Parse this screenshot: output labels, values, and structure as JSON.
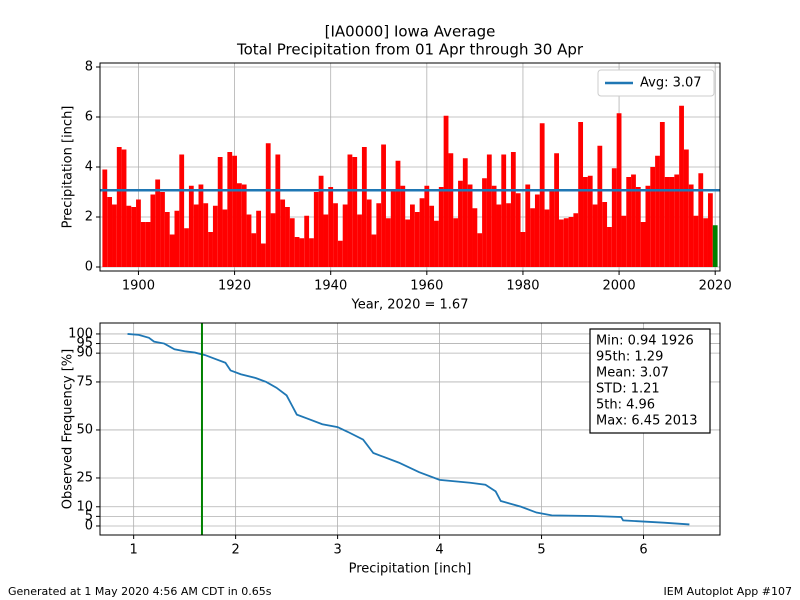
{
  "chart_data": [
    {
      "type": "bar",
      "title": "[IA0000] Iowa Average",
      "subtitle": "Total Precipitation from 01 Apr through 30 Apr",
      "xlabel": "Year, 2020 = 1.67",
      "ylabel": "Precipitation [inch]",
      "x": [
        1893,
        1894,
        1895,
        1896,
        1897,
        1898,
        1899,
        1900,
        1901,
        1902,
        1903,
        1904,
        1905,
        1906,
        1907,
        1908,
        1909,
        1910,
        1911,
        1912,
        1913,
        1914,
        1915,
        1916,
        1917,
        1918,
        1919,
        1920,
        1921,
        1922,
        1923,
        1924,
        1925,
        1926,
        1927,
        1928,
        1929,
        1930,
        1931,
        1932,
        1933,
        1934,
        1935,
        1936,
        1937,
        1938,
        1939,
        1940,
        1941,
        1942,
        1943,
        1944,
        1945,
        1946,
        1947,
        1948,
        1949,
        1950,
        1951,
        1952,
        1953,
        1954,
        1955,
        1956,
        1957,
        1958,
        1959,
        1960,
        1961,
        1962,
        1963,
        1964,
        1965,
        1966,
        1967,
        1968,
        1969,
        1970,
        1971,
        1972,
        1973,
        1974,
        1975,
        1976,
        1977,
        1978,
        1979,
        1980,
        1981,
        1982,
        1983,
        1984,
        1985,
        1986,
        1987,
        1988,
        1989,
        1990,
        1991,
        1992,
        1993,
        1994,
        1995,
        1996,
        1997,
        1998,
        1999,
        2000,
        2001,
        2002,
        2003,
        2004,
        2005,
        2006,
        2007,
        2008,
        2009,
        2010,
        2011,
        2012,
        2013,
        2014,
        2015,
        2016,
        2017,
        2018,
        2019,
        2020
      ],
      "values": [
        3.9,
        2.8,
        2.5,
        4.8,
        4.7,
        2.45,
        2.4,
        2.7,
        1.8,
        1.8,
        2.9,
        3.5,
        3.0,
        2.2,
        1.3,
        2.25,
        4.5,
        1.55,
        3.25,
        2.5,
        3.3,
        2.55,
        1.4,
        2.45,
        4.4,
        2.3,
        4.6,
        4.45,
        3.35,
        3.3,
        2.1,
        1.35,
        2.25,
        0.94,
        4.95,
        2.15,
        4.5,
        2.7,
        2.4,
        1.95,
        1.2,
        1.15,
        2.05,
        1.15,
        3.0,
        3.65,
        2.1,
        3.2,
        2.55,
        1.05,
        2.5,
        4.5,
        4.4,
        2.1,
        4.8,
        2.7,
        1.3,
        2.55,
        4.9,
        1.95,
        3.1,
        4.25,
        3.25,
        1.9,
        2.5,
        2.2,
        2.75,
        3.25,
        2.45,
        1.85,
        3.2,
        6.05,
        4.55,
        1.95,
        3.45,
        4.35,
        3.3,
        2.35,
        1.35,
        3.55,
        4.5,
        3.25,
        2.5,
        4.5,
        2.55,
        4.6,
        2.95,
        1.4,
        3.3,
        2.35,
        2.9,
        5.75,
        2.3,
        3.05,
        4.55,
        1.9,
        1.95,
        2.0,
        2.15,
        5.8,
        3.6,
        3.65,
        2.5,
        4.85,
        2.6,
        1.6,
        3.95,
        6.15,
        2.05,
        3.6,
        3.7,
        3.2,
        1.8,
        3.25,
        4.0,
        4.45,
        5.8,
        3.6,
        3.6,
        3.7,
        6.45,
        4.7,
        3.3,
        2.05,
        3.75,
        1.95,
        2.95,
        1.67
      ],
      "color": "#ff0000",
      "last_color": "#008000",
      "avg_line": {
        "label": "Avg: 3.07",
        "value": 3.07,
        "color": "#1f77b4"
      },
      "legend": "upper right",
      "xlim": [
        1892,
        2021
      ],
      "xticks": [
        1900,
        1920,
        1940,
        1960,
        1980,
        2000,
        2020
      ],
      "ylim": [
        -0.16,
        8.16
      ],
      "yticks": [
        0,
        2,
        4,
        6,
        8
      ],
      "grid": true
    },
    {
      "type": "line",
      "xlabel": "Precipitation [inch]",
      "ylabel": "Observed Frequency [%]",
      "x": [
        0.94,
        1.05,
        1.15,
        1.2,
        1.3,
        1.4,
        1.5,
        1.6,
        1.7,
        1.8,
        1.9,
        1.95,
        2.05,
        2.2,
        2.3,
        2.4,
        2.5,
        2.55,
        2.6,
        2.7,
        2.85,
        3.0,
        3.1,
        3.25,
        3.35,
        3.45,
        3.6,
        3.8,
        4.0,
        4.3,
        4.45,
        4.55,
        4.6,
        4.8,
        4.95,
        5.1,
        5.5,
        5.78,
        5.8,
        6.2,
        6.45
      ],
      "values": [
        100,
        99.5,
        98,
        96,
        95,
        92,
        91,
        90.3,
        89,
        87,
        85,
        81,
        79,
        77,
        75,
        72,
        68,
        63,
        58,
        56,
        53,
        51.5,
        49,
        45,
        38,
        36,
        33,
        28,
        24,
        22.5,
        21.5,
        18,
        13,
        10,
        7,
        5.5,
        5.2,
        4.7,
        2.9,
        1.7,
        0.8
      ],
      "color": "#1f77b4",
      "vline_color": "#008000",
      "annotations": [
        "Min: 0.94 1926",
        "95th: 1.29",
        "Mean: 3.07",
        "STD: 1.21",
        "5th: 4.96",
        "Max: 6.45 2013"
      ],
      "xlim": [
        0.67,
        6.75
      ],
      "xticks": [
        1,
        2,
        3,
        4,
        5,
        6
      ],
      "ylim": [
        -4.7,
        105.7
      ],
      "yticks": [
        0,
        5,
        10,
        25,
        50,
        75,
        90,
        95,
        100
      ],
      "grid": true
    }
  ],
  "footer": {
    "left": "Generated at 1 May 2020 4:56 AM CDT in 0.65s",
    "right": "IEM Autoplot App #107"
  }
}
